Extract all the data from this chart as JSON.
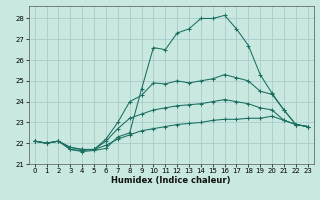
{
  "xlabel": "Humidex (Indice chaleur)",
  "ylabel": "",
  "background_color": "#c8e8e0",
  "grid_color": "#aacccc",
  "line_color": "#1a6e60",
  "xlim": [
    -0.5,
    23.5
  ],
  "ylim": [
    21.0,
    28.6
  ],
  "xticks": [
    0,
    1,
    2,
    3,
    4,
    5,
    6,
    7,
    8,
    9,
    10,
    11,
    12,
    13,
    14,
    15,
    16,
    17,
    18,
    19,
    20,
    21,
    22,
    23
  ],
  "yticks": [
    21,
    22,
    23,
    24,
    25,
    26,
    27,
    28
  ],
  "lines": [
    {
      "x": [
        0,
        1,
        2,
        3,
        4,
        5,
        6,
        7,
        8,
        9,
        10,
        11,
        12,
        13,
        14,
        15,
        16,
        17,
        18,
        19,
        20,
        21,
        22,
        23
      ],
      "y": [
        22.1,
        22.0,
        22.1,
        21.7,
        21.6,
        21.65,
        21.75,
        22.3,
        22.5,
        24.6,
        26.6,
        26.5,
        27.3,
        27.5,
        28.0,
        28.0,
        28.15,
        27.5,
        26.7,
        25.3,
        24.4,
        23.6,
        22.9,
        22.8
      ]
    },
    {
      "x": [
        0,
        1,
        2,
        3,
        4,
        5,
        6,
        7,
        8,
        9,
        10,
        11,
        12,
        13,
        14,
        15,
        16,
        17,
        18,
        19,
        20,
        21,
        22,
        23
      ],
      "y": [
        22.1,
        22.0,
        22.1,
        21.7,
        21.65,
        21.7,
        22.2,
        23.0,
        24.0,
        24.3,
        24.9,
        24.85,
        25.0,
        24.9,
        25.0,
        25.1,
        25.3,
        25.15,
        25.0,
        24.5,
        24.35,
        23.6,
        22.9,
        22.8
      ]
    },
    {
      "x": [
        0,
        1,
        2,
        3,
        4,
        5,
        6,
        7,
        8,
        9,
        10,
        11,
        12,
        13,
        14,
        15,
        16,
        17,
        18,
        19,
        20,
        21,
        22,
        23
      ],
      "y": [
        22.1,
        22.0,
        22.1,
        21.8,
        21.7,
        21.7,
        22.1,
        22.7,
        23.2,
        23.4,
        23.6,
        23.7,
        23.8,
        23.85,
        23.9,
        24.0,
        24.1,
        24.0,
        23.9,
        23.7,
        23.6,
        23.1,
        22.9,
        22.8
      ]
    },
    {
      "x": [
        0,
        1,
        2,
        3,
        4,
        5,
        6,
        7,
        8,
        9,
        10,
        11,
        12,
        13,
        14,
        15,
        16,
        17,
        18,
        19,
        20,
        21,
        22,
        23
      ],
      "y": [
        22.1,
        22.0,
        22.1,
        21.8,
        21.7,
        21.7,
        21.9,
        22.2,
        22.4,
        22.6,
        22.7,
        22.8,
        22.9,
        22.95,
        23.0,
        23.1,
        23.15,
        23.15,
        23.2,
        23.2,
        23.3,
        23.1,
        22.9,
        22.8
      ]
    }
  ]
}
